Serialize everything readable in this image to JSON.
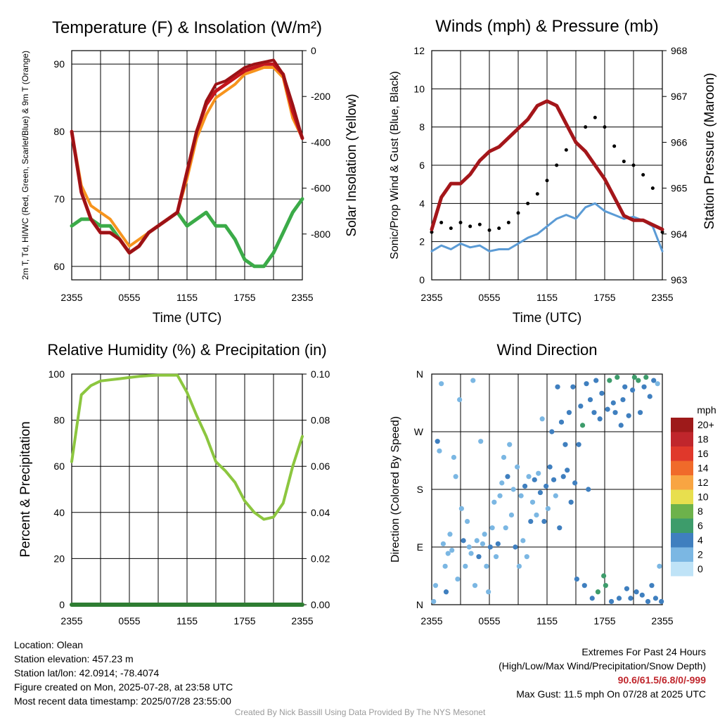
{
  "chart_data": [
    {
      "type": "line",
      "title": "Temperature (F) & Insolation (W/m²)",
      "xlabel": "Time (UTC)",
      "ylabel": "2m T, Td, HI/WC (Red, Green, Scarlet/Blue) & 9m T (Orange)",
      "ylabel2": "Solar Insolation (Yellow)",
      "x_ticks": [
        "2355",
        "0555",
        "1155",
        "1755",
        "2355"
      ],
      "ylim": [
        58,
        92
      ],
      "y_ticks": [
        60,
        70,
        80,
        90
      ],
      "ylim2": [
        -1000,
        0
      ],
      "y2_ticks": [
        0,
        -200,
        -400,
        -600,
        -800
      ],
      "x": [
        0,
        1,
        2,
        3,
        4,
        5,
        6,
        7,
        8,
        9,
        10,
        11,
        12,
        13,
        14,
        15,
        16,
        17,
        18,
        19,
        20,
        21,
        22,
        23,
        24
      ],
      "series": [
        {
          "name": "2m T",
          "color": "#c4161c",
          "values": [
            80,
            71,
            67,
            65,
            65,
            64,
            62,
            63,
            65,
            66,
            67,
            68,
            74,
            80,
            84,
            86,
            87,
            88,
            89,
            89.5,
            90,
            90,
            88.5,
            83,
            79
          ]
        },
        {
          "name": "2m Td",
          "color": "#3bab48",
          "values": [
            66,
            67,
            67,
            66,
            66,
            64,
            62,
            63,
            65,
            66,
            67,
            68,
            66,
            67,
            68,
            66,
            66,
            64,
            61,
            60,
            60,
            62,
            65,
            68,
            70
          ]
        },
        {
          "name": "HI/WC",
          "color": "#9b1216",
          "values": [
            80,
            71,
            67,
            65,
            65,
            64,
            62,
            63,
            65,
            66,
            67,
            68,
            74,
            80,
            84.5,
            87,
            87.5,
            88.5,
            89.5,
            90,
            90.3,
            90.6,
            88.5,
            84,
            79
          ]
        },
        {
          "name": "9m T",
          "color": "#f7941d",
          "values": [
            80,
            72,
            69,
            68,
            67,
            65,
            63,
            64,
            65,
            66,
            67,
            68,
            73,
            79,
            82.5,
            85,
            86,
            87,
            88.5,
            89,
            89.5,
            89.5,
            88,
            82,
            79
          ]
        }
      ]
    },
    {
      "type": "line",
      "title": "Winds (mph) & Pressure (mb)",
      "xlabel": "Time (UTC)",
      "ylabel": "Sonic/Prop Wind & Gust (Blue, Black)",
      "ylabel2": "Station Pressure (Maroon)",
      "x_ticks": [
        "2355",
        "0555",
        "1155",
        "1755",
        "2355"
      ],
      "ylim": [
        0,
        12
      ],
      "y_ticks": [
        0,
        2,
        4,
        6,
        8,
        10,
        12
      ],
      "ylim2": [
        963,
        968
      ],
      "y2_ticks": [
        963,
        964,
        965,
        966,
        967,
        968
      ],
      "x": [
        0,
        1,
        2,
        3,
        4,
        5,
        6,
        7,
        8,
        9,
        10,
        11,
        12,
        13,
        14,
        15,
        16,
        17,
        18,
        19,
        20,
        21,
        22,
        23,
        24
      ],
      "series": [
        {
          "name": "Wind",
          "color": "#5b9bd5",
          "values": [
            1.5,
            1.8,
            1.6,
            1.9,
            1.7,
            1.8,
            1.5,
            1.6,
            1.6,
            1.9,
            2.2,
            2.4,
            2.8,
            3.2,
            3.4,
            3.2,
            3.8,
            4.0,
            3.6,
            3.4,
            3.2,
            3.3,
            3.1,
            2.8,
            1.5
          ]
        },
        {
          "name": "Gust",
          "color": "#000000",
          "values": [
            2.5,
            3.0,
            2.7,
            3.0,
            2.8,
            2.9,
            2.6,
            2.7,
            3.0,
            3.5,
            4.0,
            4.5,
            5.2,
            6.0,
            6.8,
            7.2,
            8.0,
            8.5,
            8.0,
            7.0,
            6.2,
            6.0,
            5.5,
            4.8,
            2.5
          ]
        },
        {
          "name": "Pressure",
          "color": "#a4161a",
          "axis": "right",
          "values": [
            964.1,
            964.8,
            965.1,
            965.1,
            965.3,
            965.6,
            965.8,
            965.9,
            966.1,
            966.3,
            966.5,
            966.8,
            966.9,
            966.8,
            966.4,
            966.0,
            965.8,
            965.5,
            965.2,
            964.8,
            964.4,
            964.3,
            964.3,
            964.2,
            964.1
          ]
        }
      ]
    },
    {
      "type": "line",
      "title": "Relative Humidity (%) & Precipitation (in)",
      "xlabel": "",
      "ylabel": "Percent & Precipitation",
      "x_ticks": [
        "2355",
        "0555",
        "1155",
        "1755",
        "2355"
      ],
      "ylim": [
        0,
        100
      ],
      "y_ticks": [
        0,
        20,
        40,
        60,
        80,
        100
      ],
      "ylim2": [
        0,
        0.1
      ],
      "y2_ticks": [
        "0.00",
        "0.02",
        "0.04",
        "0.06",
        "0.08",
        "0.10"
      ],
      "x": [
        0,
        1,
        2,
        3,
        4,
        5,
        6,
        7,
        8,
        9,
        10,
        11,
        12,
        13,
        14,
        15,
        16,
        17,
        18,
        19,
        20,
        21,
        22,
        23,
        24
      ],
      "series": [
        {
          "name": "RH",
          "color": "#8cc63f",
          "values": [
            62,
            91,
            95,
            97,
            97.5,
            98,
            98.5,
            99,
            99.3,
            99.5,
            99.5,
            99.5,
            92,
            82,
            73,
            62,
            58,
            53,
            45,
            40,
            37,
            38,
            44,
            60,
            73
          ]
        },
        {
          "name": "Precipitation",
          "color": "#2e7d32",
          "axis": "right",
          "values": [
            0,
            0,
            0,
            0,
            0,
            0,
            0,
            0,
            0,
            0,
            0,
            0,
            0,
            0,
            0,
            0,
            0,
            0,
            0,
            0,
            0,
            0,
            0,
            0,
            0
          ]
        }
      ]
    },
    {
      "type": "scatter",
      "title": "Wind Direction",
      "xlabel": "",
      "ylabel": "Direction (Colored By Speed)",
      "x_ticks": [
        "2355",
        "0555",
        "1155",
        "1755",
        "2355"
      ],
      "y_ticks": [
        "N",
        "E",
        "S",
        "W",
        "N"
      ],
      "ylim": [
        0,
        360
      ],
      "legend": {
        "title": "mph",
        "labels": [
          "20+",
          "18",
          "16",
          "14",
          "12",
          "10",
          "8",
          "6",
          "4",
          "2",
          "0"
        ],
        "colors": [
          "#9e1a1a",
          "#c0262c",
          "#e0382b",
          "#f06a2a",
          "#f8a542",
          "#e8df4e",
          "#6db24b",
          "#3d9c6b",
          "#3f7fbf",
          "#7bb7e3",
          "#bfe3f7"
        ],
        "placement": "right"
      },
      "points": [
        {
          "x": 0.2,
          "dir": 5,
          "spd": 2
        },
        {
          "x": 0.4,
          "dir": 30,
          "spd": 2
        },
        {
          "x": 0.6,
          "dir": 255,
          "spd": 3
        },
        {
          "x": 0.8,
          "dir": 240,
          "spd": 2
        },
        {
          "x": 1.0,
          "dir": 345,
          "spd": 1
        },
        {
          "x": 1.2,
          "dir": 95,
          "spd": 2
        },
        {
          "x": 1.4,
          "dir": 60,
          "spd": 2
        },
        {
          "x": 1.5,
          "dir": 20,
          "spd": 3
        },
        {
          "x": 1.7,
          "dir": 80,
          "spd": 2
        },
        {
          "x": 1.9,
          "dir": 110,
          "spd": 1
        },
        {
          "x": 2.1,
          "dir": 85,
          "spd": 2
        },
        {
          "x": 2.3,
          "dir": 230,
          "spd": 1
        },
        {
          "x": 2.5,
          "dir": 200,
          "spd": 2
        },
        {
          "x": 2.7,
          "dir": 40,
          "spd": 2
        },
        {
          "x": 2.9,
          "dir": 320,
          "spd": 1
        },
        {
          "x": 3.1,
          "dir": 150,
          "spd": 2
        },
        {
          "x": 3.3,
          "dir": 100,
          "spd": 3
        },
        {
          "x": 3.5,
          "dir": 60,
          "spd": 1
        },
        {
          "x": 3.7,
          "dir": 130,
          "spd": 2
        },
        {
          "x": 3.9,
          "dir": 90,
          "spd": 2
        },
        {
          "x": 4.1,
          "dir": 80,
          "spd": 2
        },
        {
          "x": 4.3,
          "dir": 350,
          "spd": 1
        },
        {
          "x": 4.5,
          "dir": 30,
          "spd": 2
        },
        {
          "x": 4.7,
          "dir": 100,
          "spd": 2
        },
        {
          "x": 4.9,
          "dir": 75,
          "spd": 3
        },
        {
          "x": 5.1,
          "dir": 255,
          "spd": 2
        },
        {
          "x": 5.3,
          "dir": 95,
          "spd": 2
        },
        {
          "x": 5.5,
          "dir": 110,
          "spd": 2
        },
        {
          "x": 5.7,
          "dir": 60,
          "spd": 2
        },
        {
          "x": 5.9,
          "dir": 20,
          "spd": 1
        },
        {
          "x": 6.1,
          "dir": 90,
          "spd": 3
        },
        {
          "x": 6.3,
          "dir": 120,
          "spd": 2
        },
        {
          "x": 6.5,
          "dir": 160,
          "spd": 2
        },
        {
          "x": 6.7,
          "dir": 75,
          "spd": 1
        },
        {
          "x": 6.9,
          "dir": 95,
          "spd": 3
        },
        {
          "x": 7.1,
          "dir": 170,
          "spd": 2
        },
        {
          "x": 7.3,
          "dir": 190,
          "spd": 2
        },
        {
          "x": 7.5,
          "dir": 230,
          "spd": 1
        },
        {
          "x": 7.7,
          "dir": 120,
          "spd": 2
        },
        {
          "x": 7.9,
          "dir": 200,
          "spd": 3
        },
        {
          "x": 8.1,
          "dir": 250,
          "spd": 1
        },
        {
          "x": 8.3,
          "dir": 140,
          "spd": 2
        },
        {
          "x": 8.5,
          "dir": 180,
          "spd": 2
        },
        {
          "x": 8.7,
          "dir": 90,
          "spd": 3
        },
        {
          "x": 8.9,
          "dir": 215,
          "spd": 2
        },
        {
          "x": 9.1,
          "dir": 60,
          "spd": 2
        },
        {
          "x": 9.3,
          "dir": 170,
          "spd": 2
        },
        {
          "x": 9.5,
          "dir": 100,
          "spd": 2
        },
        {
          "x": 9.7,
          "dir": 185,
          "spd": 3
        },
        {
          "x": 9.9,
          "dir": 75,
          "spd": 2
        },
        {
          "x": 10.1,
          "dir": 200,
          "spd": 2
        },
        {
          "x": 10.3,
          "dir": 130,
          "spd": 3
        },
        {
          "x": 10.5,
          "dir": 160,
          "spd": 2
        },
        {
          "x": 10.7,
          "dir": 195,
          "spd": 3
        },
        {
          "x": 10.9,
          "dir": 140,
          "spd": 2
        },
        {
          "x": 11.1,
          "dir": 205,
          "spd": 2
        },
        {
          "x": 11.3,
          "dir": 175,
          "spd": 3
        },
        {
          "x": 11.5,
          "dir": 290,
          "spd": 2
        },
        {
          "x": 11.7,
          "dir": 130,
          "spd": 3
        },
        {
          "x": 11.9,
          "dir": 185,
          "spd": 3
        },
        {
          "x": 12.1,
          "dir": 150,
          "spd": 2
        },
        {
          "x": 12.3,
          "dir": 215,
          "spd": 3
        },
        {
          "x": 12.5,
          "dir": 270,
          "spd": 4
        },
        {
          "x": 12.7,
          "dir": 195,
          "spd": 3
        },
        {
          "x": 12.9,
          "dir": 170,
          "spd": 2
        },
        {
          "x": 13.1,
          "dir": 340,
          "spd": 3
        },
        {
          "x": 13.3,
          "dir": 120,
          "spd": 3
        },
        {
          "x": 13.5,
          "dir": 285,
          "spd": 3
        },
        {
          "x": 13.7,
          "dir": 200,
          "spd": 4
        },
        {
          "x": 13.9,
          "dir": 250,
          "spd": 3
        },
        {
          "x": 14.1,
          "dir": 210,
          "spd": 3
        },
        {
          "x": 14.3,
          "dir": 300,
          "spd": 3
        },
        {
          "x": 14.5,
          "dir": 160,
          "spd": 3
        },
        {
          "x": 14.7,
          "dir": 340,
          "spd": 4
        },
        {
          "x": 14.9,
          "dir": 190,
          "spd": 3
        },
        {
          "x": 15.1,
          "dir": 40,
          "spd": 4
        },
        {
          "x": 15.3,
          "dir": 250,
          "spd": 3
        },
        {
          "x": 15.5,
          "dir": 310,
          "spd": 4
        },
        {
          "x": 15.7,
          "dir": 280,
          "spd": 5
        },
        {
          "x": 15.9,
          "dir": 30,
          "spd": 4
        },
        {
          "x": 16.1,
          "dir": 345,
          "spd": 3
        },
        {
          "x": 16.3,
          "dir": 180,
          "spd": 3
        },
        {
          "x": 16.5,
          "dir": 320,
          "spd": 4
        },
        {
          "x": 16.7,
          "dir": 10,
          "spd": 4
        },
        {
          "x": 16.9,
          "dir": 300,
          "spd": 4
        },
        {
          "x": 17.1,
          "dir": 350,
          "spd": 4
        },
        {
          "x": 17.3,
          "dir": 20,
          "spd": 5
        },
        {
          "x": 17.5,
          "dir": 290,
          "spd": 4
        },
        {
          "x": 17.7,
          "dir": 330,
          "spd": 4
        },
        {
          "x": 17.9,
          "dir": 45,
          "spd": 6
        },
        {
          "x": 18.1,
          "dir": 30,
          "spd": 6
        },
        {
          "x": 18.3,
          "dir": 305,
          "spd": 4
        },
        {
          "x": 18.5,
          "dir": 350,
          "spd": 5
        },
        {
          "x": 18.7,
          "dir": 5,
          "spd": 4
        },
        {
          "x": 18.9,
          "dir": 315,
          "spd": 4
        },
        {
          "x": 19.1,
          "dir": 300,
          "spd": 3
        },
        {
          "x": 19.3,
          "dir": 355,
          "spd": 5
        },
        {
          "x": 19.5,
          "dir": 10,
          "spd": 4
        },
        {
          "x": 19.7,
          "dir": 280,
          "spd": 4
        },
        {
          "x": 19.9,
          "dir": 320,
          "spd": 3
        },
        {
          "x": 20.1,
          "dir": 340,
          "spd": 4
        },
        {
          "x": 20.3,
          "dir": 25,
          "spd": 4
        },
        {
          "x": 20.5,
          "dir": 295,
          "spd": 3
        },
        {
          "x": 20.7,
          "dir": 10,
          "spd": 4
        },
        {
          "x": 20.9,
          "dir": 335,
          "spd": 4
        },
        {
          "x": 21.1,
          "dir": 355,
          "spd": 5
        },
        {
          "x": 21.3,
          "dir": 20,
          "spd": 4
        },
        {
          "x": 21.5,
          "dir": 350,
          "spd": 6
        },
        {
          "x": 21.7,
          "dir": 300,
          "spd": 3
        },
        {
          "x": 21.9,
          "dir": 15,
          "spd": 4
        },
        {
          "x": 22.1,
          "dir": 340,
          "spd": 4
        },
        {
          "x": 22.3,
          "dir": 355,
          "spd": 6
        },
        {
          "x": 22.5,
          "dir": 5,
          "spd": 4
        },
        {
          "x": 22.7,
          "dir": 325,
          "spd": 3
        },
        {
          "x": 22.9,
          "dir": 30,
          "spd": 4
        },
        {
          "x": 23.1,
          "dir": 350,
          "spd": 3
        },
        {
          "x": 23.3,
          "dir": 10,
          "spd": 4
        },
        {
          "x": 23.5,
          "dir": 345,
          "spd": 2
        },
        {
          "x": 23.7,
          "dir": 60,
          "spd": 2
        },
        {
          "x": 23.9,
          "dir": 5,
          "spd": 3
        }
      ]
    }
  ],
  "info": {
    "location": "Location: Olean",
    "elevation": "Station elevation: 457.23 m",
    "latlon": "Station lat/lon: 42.0914; -78.4074",
    "created": "Figure created on Mon, 2025-07-28, at 23:58 UTC",
    "recent": "Most recent data timestamp: 2025/07/28 23:55:00",
    "extremes_title": "Extremes For Past 24 Hours",
    "extremes_sub": "(High/Low/Max Wind/Precipitation/Snow Depth)",
    "extremes_values": "90.6/61.5/6.8/0/-999",
    "max_gust": "Max Gust: 11.5 mph On 07/28 at 2025 UTC",
    "credit": "Created By Nick Bassill Using Data Provided By The NYS Mesonet"
  }
}
